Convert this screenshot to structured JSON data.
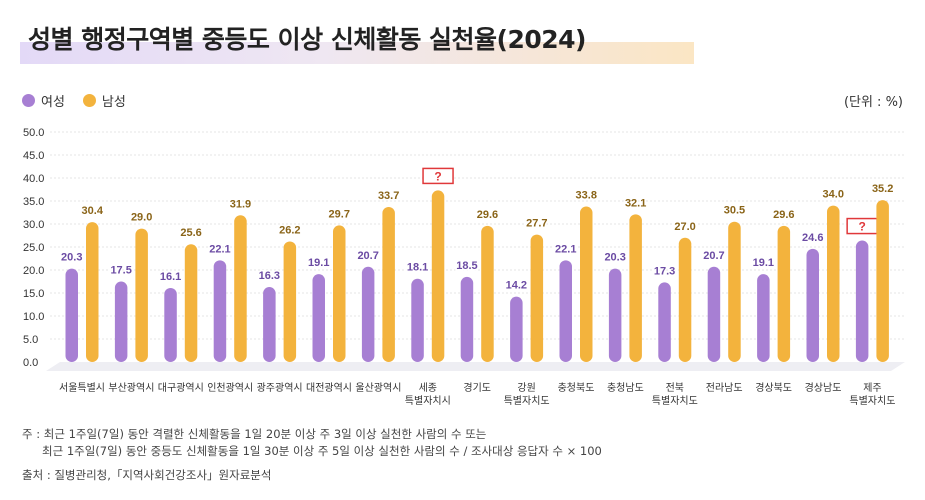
{
  "title": "성별 행정구역별 중등도 이상 신체활동 실천율(2024)",
  "unit": "(단위 : %)",
  "legend": {
    "female": "여성",
    "male": "남성"
  },
  "colors": {
    "female": "#a77fd3",
    "male": "#f3b33d",
    "female_label": "#6b4ba3",
    "male_label": "#8a6418",
    "unknown_box": "#e0383a"
  },
  "notes": {
    "line1": "주 : 최근 1주일(7일) 동안 격렬한 신체활동을 1일 20분 이상 주 3일 이상 실천한 사람의 수 또는",
    "line2": "최근 1주일(7일) 동안 중등도 신체활동을 1일 30분 이상 주 5일 이상 실천한 사람의 수 / 조사대상 응답자 수 × 100",
    "source": "출처 : 질병관리청,「지역사회건강조사」원자료분석"
  },
  "chart_data": {
    "type": "bar",
    "y_ticks": [
      "50.0",
      "45.0",
      "40.0",
      "35.0",
      "30.0",
      "25.0",
      "20.0",
      "15.0",
      "10.0",
      "5.0",
      "0.0"
    ],
    "ylim": [
      0,
      50
    ],
    "categories": [
      [
        "서울특별시"
      ],
      [
        "부산광역시"
      ],
      [
        "대구광역시"
      ],
      [
        "인천광역시"
      ],
      [
        "광주광역시"
      ],
      [
        "대전광역시"
      ],
      [
        "울산광역시"
      ],
      [
        "세종",
        "특별자치시"
      ],
      [
        "경기도"
      ],
      [
        "강원",
        "특별자치도"
      ],
      [
        "충청북도"
      ],
      [
        "충청남도"
      ],
      [
        "전북",
        "특별자치도"
      ],
      [
        "전라남도"
      ],
      [
        "경상북도"
      ],
      [
        "경상남도"
      ],
      [
        "제주",
        "특별자치도"
      ]
    ],
    "series": [
      {
        "name": "여성",
        "values": [
          20.3,
          17.5,
          16.1,
          22.1,
          16.3,
          19.1,
          20.7,
          18.1,
          18.5,
          14.2,
          22.1,
          20.3,
          17.3,
          20.7,
          19.1,
          24.6,
          26.4
        ],
        "labels": [
          "20.3",
          "17.5",
          "16.1",
          "22.1",
          "16.3",
          "19.1",
          "20.7",
          "18.1",
          "18.5",
          "14.2",
          "22.1",
          "20.3",
          "17.3",
          "20.7",
          "19.1",
          "24.6",
          "?"
        ]
      },
      {
        "name": "남성",
        "values": [
          30.4,
          29.0,
          25.6,
          31.9,
          26.2,
          29.7,
          33.7,
          37.3,
          29.6,
          27.7,
          33.8,
          32.1,
          27.0,
          30.5,
          29.6,
          34.0,
          35.2
        ],
        "labels": [
          "30.4",
          "29.0",
          "25.6",
          "31.9",
          "26.2",
          "29.7",
          "33.7",
          "?",
          "29.6",
          "27.7",
          "33.8",
          "32.1",
          "27.0",
          "30.5",
          "29.6",
          "34.0",
          "35.2"
        ]
      }
    ]
  }
}
